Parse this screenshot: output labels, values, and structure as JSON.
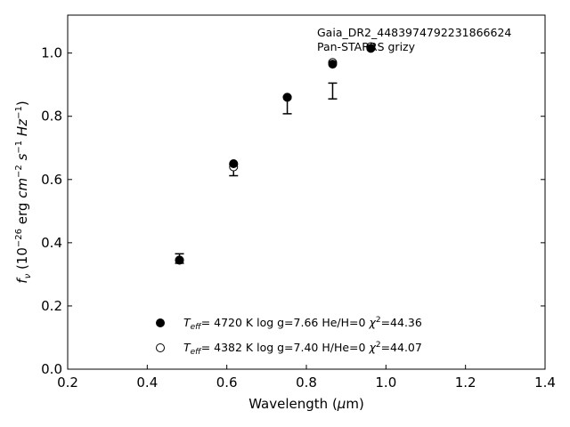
{
  "chart_data": {
    "type": "scatter",
    "annotations": [
      "Gaia_DR2_4483974792231866624",
      "Pan-STARRS grizy"
    ],
    "xlabel": "Wavelength (μm)",
    "ylabel": "fν (10⁻²⁶ erg cm⁻² s⁻¹ Hz⁻¹)",
    "xlim": [
      0.2,
      1.4
    ],
    "ylim": [
      0.0,
      1.12
    ],
    "x_ticks": [
      "0.2",
      "0.4",
      "0.6",
      "0.8",
      "1.0",
      "1.2",
      "1.4"
    ],
    "y_ticks": [
      "0.0",
      "0.2",
      "0.4",
      "0.6",
      "0.8",
      "1.0"
    ],
    "x_tick_values": [
      0.2,
      0.4,
      0.6,
      0.8,
      1.0,
      1.2,
      1.4
    ],
    "y_tick_values": [
      0.0,
      0.2,
      0.4,
      0.6,
      0.8,
      1.0
    ],
    "grid": false,
    "legend_position": "lower-center",
    "observed": {
      "x": [
        0.481,
        0.617,
        0.752,
        0.866
      ],
      "y": [
        0.35,
        0.63,
        0.835,
        0.88
      ],
      "yerr": [
        0.015,
        0.018,
        0.027,
        0.025
      ]
    },
    "series": [
      {
        "label": "T_eff=  4720 K  log g=7.66  He/H=0  χ²=44.36",
        "marker": "filled-circle",
        "color": "#000000",
        "x": [
          0.481,
          0.617,
          0.752,
          0.866,
          0.962
        ],
        "y": [
          0.345,
          0.65,
          0.86,
          0.965,
          1.015
        ]
      },
      {
        "label": "T_eff=  4382 K  log g=7.40  H/He=0  χ²=44.07",
        "marker": "open-circle",
        "color": "#000000",
        "x": [
          0.481,
          0.617,
          0.752,
          0.866,
          0.962
        ],
        "y": [
          0.345,
          0.64,
          0.86,
          0.97,
          1.02
        ]
      }
    ]
  }
}
